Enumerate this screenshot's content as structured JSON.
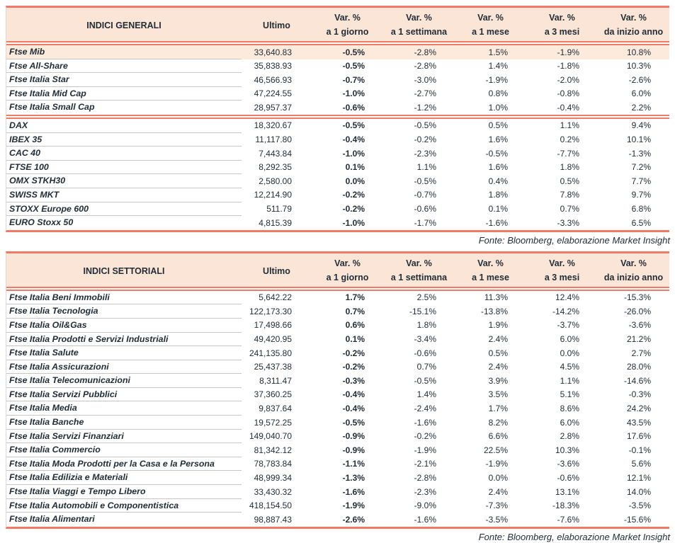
{
  "colors": {
    "accent": "#EF7A66",
    "header_bg": "#FBE5D6",
    "highlight_bg": "#FCEADC",
    "text": "#222E38",
    "row_line": "#C6C6C6",
    "table_edge": "#D9D9D9"
  },
  "tables": [
    {
      "title": "INDICI GENERALI",
      "ultimo_label": "Ultimo",
      "var_label": "Var. %",
      "var_sublabels": [
        "a 1 giorno",
        "a 1 settimana",
        "a 1 mese",
        "a 3 mesi",
        "da inizio anno"
      ],
      "source_note": "Fonte: Bloomberg, elaborazione Market Insight",
      "rows": [
        {
          "name": "Ftse Mib",
          "ultimo": "33,640.83",
          "values": [
            "-0.5%",
            "-2.8%",
            "1.5%",
            "-1.9%",
            "10.8%"
          ],
          "highlight": true
        },
        {
          "name": "Ftse All-Share",
          "ultimo": "35,838.93",
          "values": [
            "-0.5%",
            "-2.8%",
            "1.4%",
            "-1.8%",
            "10.3%"
          ]
        },
        {
          "name": "Ftse Italia Star",
          "ultimo": "46,566.93",
          "values": [
            "-0.7%",
            "-3.0%",
            "-1.9%",
            "-2.0%",
            "-2.6%"
          ]
        },
        {
          "name": "Ftse Italia Mid Cap",
          "ultimo": "47,224.55",
          "values": [
            "-1.0%",
            "-2.7%",
            "0.8%",
            "-0.8%",
            "6.0%"
          ]
        },
        {
          "name": "Ftse Italia Small Cap",
          "ultimo": "28,957.37",
          "values": [
            "-0.6%",
            "-1.2%",
            "1.0%",
            "-0.4%",
            "2.2%"
          ],
          "separator_after": true
        },
        {
          "name": "DAX",
          "ultimo": "18,320.67",
          "values": [
            "-0.5%",
            "-0.5%",
            "0.5%",
            "1.1%",
            "9.4%"
          ]
        },
        {
          "name": "IBEX 35",
          "ultimo": "11,117.80",
          "values": [
            "-0.4%",
            "-0.2%",
            "1.6%",
            "0.2%",
            "10.1%"
          ]
        },
        {
          "name": "CAC 40",
          "ultimo": "7,443.84",
          "values": [
            "-1.0%",
            "-2.3%",
            "-0.5%",
            "-7.7%",
            "-1.3%"
          ]
        },
        {
          "name": "FTSE 100",
          "ultimo": "8,292.35",
          "values": [
            "0.1%",
            "1.1%",
            "1.6%",
            "1.8%",
            "7.2%"
          ]
        },
        {
          "name": "OMX STKH30",
          "ultimo": "2,580.00",
          "values": [
            "0.0%",
            "-0.5%",
            "0.4%",
            "0.5%",
            "7.7%"
          ]
        },
        {
          "name": "SWISS MKT",
          "ultimo": "12,214.90",
          "values": [
            "-0.2%",
            "-0.7%",
            "1.8%",
            "7.8%",
            "9.7%"
          ]
        },
        {
          "name": "STOXX Europe 600",
          "ultimo": "511.79",
          "values": [
            "-0.2%",
            "-0.6%",
            "0.1%",
            "0.7%",
            "6.8%"
          ]
        },
        {
          "name": "EURO Stoxx 50",
          "ultimo": "4,815.39",
          "values": [
            "-1.0%",
            "-1.7%",
            "-1.6%",
            "-3.3%",
            "6.5%"
          ]
        }
      ]
    },
    {
      "title": "INDICI SETTORIALI",
      "ultimo_label": "Ultimo",
      "var_label": "Var. %",
      "var_sublabels": [
        "a 1 giorno",
        "a 1 settimana",
        "a 1 mese",
        "a 3 mesi",
        "da inizio anno"
      ],
      "source_note": "Fonte: Bloomberg, elaborazione Market Insight",
      "rows": [
        {
          "name": "Ftse Italia Beni Immobili",
          "ultimo": "5,642.22",
          "values": [
            "1.7%",
            "2.5%",
            "11.3%",
            "12.4%",
            "-15.3%"
          ]
        },
        {
          "name": "Ftse Italia Tecnologia",
          "ultimo": "122,173.30",
          "values": [
            "0.7%",
            "-15.1%",
            "-13.8%",
            "-14.2%",
            "-26.0%"
          ]
        },
        {
          "name": "Ftse Italia Oil&Gas",
          "ultimo": "17,498.66",
          "values": [
            "0.6%",
            "1.8%",
            "1.9%",
            "-3.7%",
            "-3.6%"
          ]
        },
        {
          "name": "Ftse Italia Prodotti e Servizi Industriali",
          "ultimo": "49,420.95",
          "values": [
            "0.1%",
            "-3.4%",
            "2.4%",
            "6.0%",
            "21.2%"
          ]
        },
        {
          "name": "Ftse Italia Salute",
          "ultimo": "241,135.80",
          "values": [
            "-0.2%",
            "-0.6%",
            "0.5%",
            "0.0%",
            "2.7%"
          ]
        },
        {
          "name": "Ftse Italia Assicurazioni",
          "ultimo": "25,437.38",
          "values": [
            "-0.2%",
            "0.7%",
            "2.4%",
            "4.5%",
            "28.0%"
          ]
        },
        {
          "name": "Ftse Italia Telecomunicazioni",
          "ultimo": "8,311.47",
          "values": [
            "-0.3%",
            "-0.5%",
            "3.9%",
            "1.1%",
            "-14.6%"
          ]
        },
        {
          "name": "Ftse Italia Servizi Pubblici",
          "ultimo": "37,360.25",
          "values": [
            "-0.4%",
            "1.4%",
            "3.5%",
            "5.1%",
            "-0.3%"
          ]
        },
        {
          "name": "Ftse Italia Media",
          "ultimo": "9,837.64",
          "values": [
            "-0.4%",
            "-2.4%",
            "1.7%",
            "8.6%",
            "24.2%"
          ]
        },
        {
          "name": "Ftse Italia Banche",
          "ultimo": "19,572.25",
          "values": [
            "-0.5%",
            "-1.6%",
            "8.2%",
            "6.0%",
            "43.5%"
          ]
        },
        {
          "name": "Ftse Italia Servizi Finanziari",
          "ultimo": "149,040.70",
          "values": [
            "-0.9%",
            "-0.2%",
            "6.6%",
            "2.8%",
            "17.6%"
          ]
        },
        {
          "name": "Ftse Italia Commercio",
          "ultimo": "81,342.12",
          "values": [
            "-0.9%",
            "-1.9%",
            "22.5%",
            "10.3%",
            "-0.1%"
          ]
        },
        {
          "name": "Ftse Italia Moda Prodotti per la Casa e la Persona",
          "ultimo": "78,783.84",
          "values": [
            "-1.1%",
            "-2.1%",
            "-1.9%",
            "-3.6%",
            "5.6%"
          ]
        },
        {
          "name": "Ftse Italia Edilizia e Materiali",
          "ultimo": "48,999.34",
          "values": [
            "-1.3%",
            "-2.8%",
            "0.0%",
            "-0.6%",
            "12.1%"
          ]
        },
        {
          "name": "Ftse Italia Viaggi e Tempo Libero",
          "ultimo": "33,430.32",
          "values": [
            "-1.6%",
            "-2.3%",
            "2.4%",
            "13.1%",
            "14.0%"
          ]
        },
        {
          "name": "Ftse Italia Automobili e Componentistica",
          "ultimo": "418,154.50",
          "values": [
            "-1.9%",
            "-9.0%",
            "-7.3%",
            "-18.3%",
            "-3.5%"
          ]
        },
        {
          "name": "Ftse Italia Alimentari",
          "ultimo": "98,887.43",
          "values": [
            "-2.6%",
            "-1.6%",
            "-3.5%",
            "-7.6%",
            "-15.6%"
          ]
        }
      ]
    }
  ]
}
